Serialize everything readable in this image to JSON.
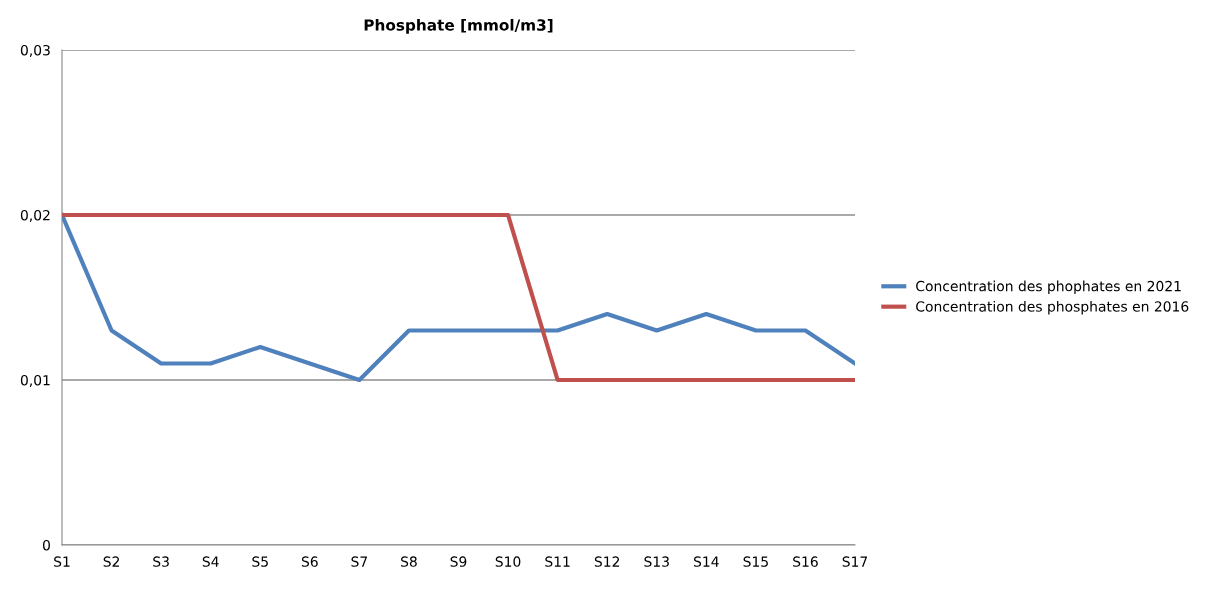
{
  "chart_data": {
    "type": "line",
    "title": "Phosphate [mmol/m3]",
    "categories": [
      "S1",
      "S2",
      "S3",
      "S4",
      "S5",
      "S6",
      "S7",
      "S8",
      "S9",
      "S10",
      "S11",
      "S12",
      "S13",
      "S14",
      "S15",
      "S16",
      "S17"
    ],
    "series": [
      {
        "name": "Concentration des phophates en 2021",
        "color": "#4f81bd",
        "values": [
          0.02,
          0.013,
          0.011,
          0.011,
          0.012,
          0.011,
          0.01,
          0.013,
          0.013,
          0.013,
          0.013,
          0.014,
          0.013,
          0.014,
          0.013,
          0.013,
          0.011
        ]
      },
      {
        "name": "Concentration des phosphates en 2016",
        "color": "#c0504d",
        "values": [
          0.02,
          0.02,
          0.02,
          0.02,
          0.02,
          0.02,
          0.02,
          0.02,
          0.02,
          0.02,
          0.01,
          0.01,
          0.01,
          0.01,
          0.01,
          0.01,
          0.01
        ]
      }
    ],
    "ylim": [
      0,
      0.03
    ],
    "yticks": [
      0,
      {
        "value": 0.01,
        "label": "0,01"
      },
      {
        "value": 0.02,
        "label": "0,02"
      },
      {
        "value": 0.03,
        "label": "0,03"
      }
    ],
    "grid": "y",
    "legend": "right",
    "marker": "none",
    "line_style": "solid"
  }
}
